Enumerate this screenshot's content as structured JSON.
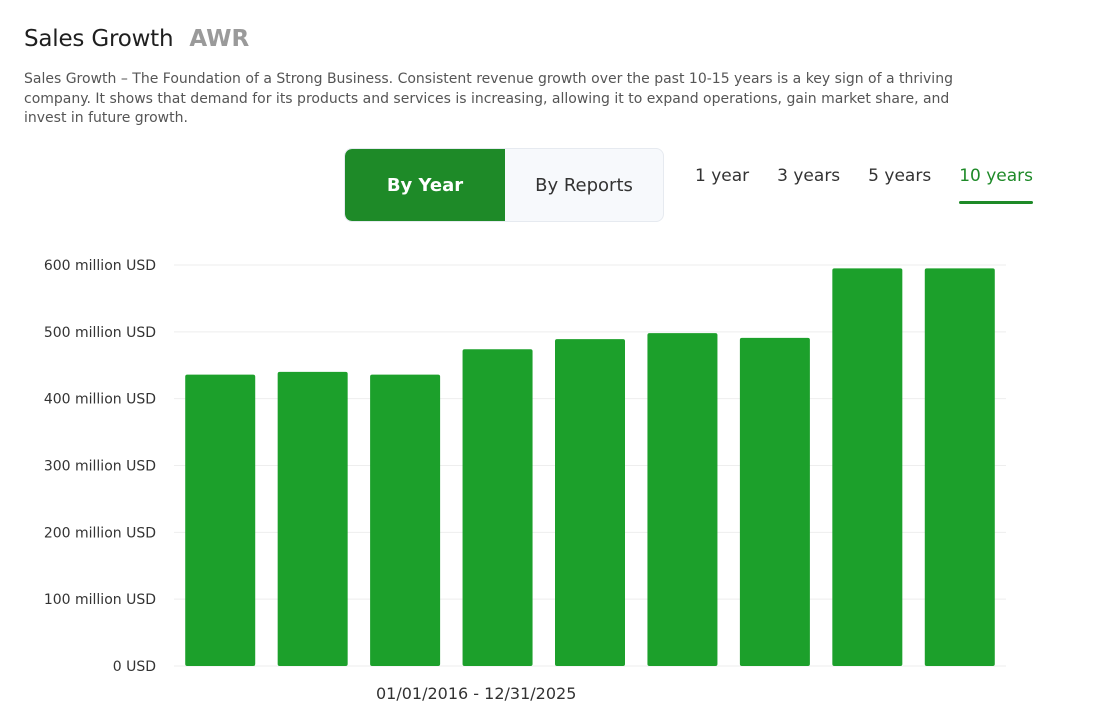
{
  "header": {
    "title": "Sales Growth",
    "ticker": "AWR"
  },
  "description": "Sales Growth – The Foundation of a Strong Business. Consistent revenue growth over the past 10-15 years is a key sign of a thriving company. It shows that demand for its products and services is increasing, allowing it to expand operations, gain market share, and invest in future growth.",
  "mode_toggle": {
    "by_year": "By Year",
    "by_reports": "By Reports",
    "active": "By Year"
  },
  "period_tabs": {
    "items": [
      "1 year",
      "3 years",
      "5 years",
      "10 years"
    ],
    "active": "10 years"
  },
  "date_range": "01/01/2016 - 12/31/2025",
  "colors": {
    "accent": "#1e8a28",
    "bar": "#1ca02b",
    "grid": "#eeeeee"
  },
  "chart_data": {
    "type": "bar",
    "categories": [
      "",
      "",
      "",
      "",
      "",
      "",
      "",
      "",
      ""
    ],
    "values": [
      436,
      440,
      436,
      474,
      489,
      498,
      491,
      595,
      595
    ],
    "yticks": [
      0,
      100,
      200,
      300,
      400,
      500,
      600
    ],
    "ytick_labels": [
      "0 USD",
      "100 million USD",
      "200 million USD",
      "300 million USD",
      "400 million USD",
      "500 million USD",
      "600 million USD"
    ],
    "ylim": [
      0,
      600
    ],
    "xlabel": "",
    "ylabel": "",
    "unit": "million USD",
    "grid": true
  }
}
